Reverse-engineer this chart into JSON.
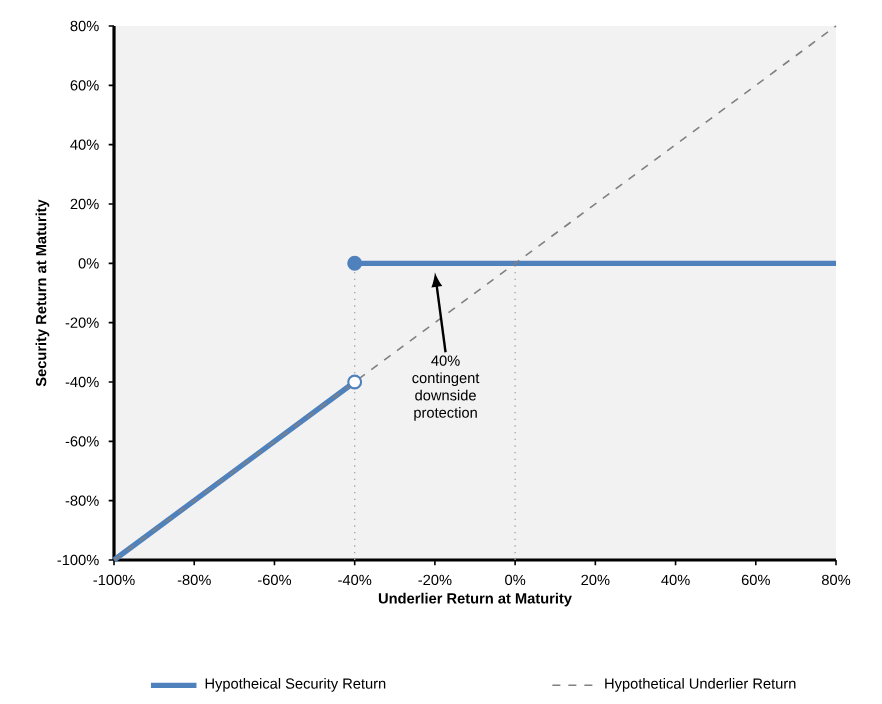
{
  "chart_data": {
    "type": "line",
    "xlabel": "Underlier Return at Maturity",
    "ylabel": "Security Return at Maturity",
    "xlim": [
      -100,
      80
    ],
    "ylim": [
      -100,
      80
    ],
    "xticks": [
      {
        "value": -100,
        "label": "-100%"
      },
      {
        "value": -80,
        "label": "-80%"
      },
      {
        "value": -60,
        "label": "-60%"
      },
      {
        "value": -40,
        "label": "-40%"
      },
      {
        "value": -20,
        "label": "-20%"
      },
      {
        "value": 0,
        "label": "0%"
      },
      {
        "value": 20,
        "label": "20%"
      },
      {
        "value": 40,
        "label": "40%"
      },
      {
        "value": 60,
        "label": "60%"
      },
      {
        "value": 80,
        "label": "80%"
      }
    ],
    "yticks": [
      {
        "value": -100,
        "label": "-100%"
      },
      {
        "value": -80,
        "label": "-80%"
      },
      {
        "value": -60,
        "label": "-60%"
      },
      {
        "value": -40,
        "label": "-40%"
      },
      {
        "value": -20,
        "label": "-20%"
      },
      {
        "value": 0,
        "label": "0%"
      },
      {
        "value": 20,
        "label": "20%"
      },
      {
        "value": 40,
        "label": "40%"
      },
      {
        "value": 60,
        "label": "60%"
      },
      {
        "value": 80,
        "label": "80%"
      }
    ],
    "grid": false,
    "legend": "bottom",
    "series": [
      {
        "line_style": "dotted",
        "color": "#a6a6a6",
        "x": [
          -40,
          -40
        ],
        "values": [
          -100,
          0
        ]
      },
      {
        "line_style": "dotted",
        "color": "#a6a6a6",
        "x": [
          0,
          0
        ],
        "values": [
          -100,
          0
        ]
      },
      {
        "name": "Hypotheical Security Return",
        "line_style": "solid",
        "color": "#4f81bd",
        "x": [
          -100,
          -40
        ],
        "values": [
          -100,
          -40
        ]
      },
      {
        "line_style": "solid",
        "color": "#4f81bd",
        "x": [
          -40,
          80
        ],
        "values": [
          0,
          0
        ]
      },
      {
        "name": "Hypothetical Underlier Return",
        "line_style": "dashed",
        "color": "#808080",
        "x": [
          -100,
          80
        ],
        "values": [
          -100,
          80
        ]
      },
      {
        "type": "scatter",
        "marker": "circle",
        "color": "#4f81bd",
        "colors": [
          "#4f81bd",
          "#ffffff"
        ],
        "x": [
          -40,
          -40
        ],
        "values": [
          0,
          -40
        ]
      }
    ],
    "annotations": [
      {
        "text": "40% contingent downside protection",
        "x": -20,
        "y": -3
      }
    ]
  }
}
